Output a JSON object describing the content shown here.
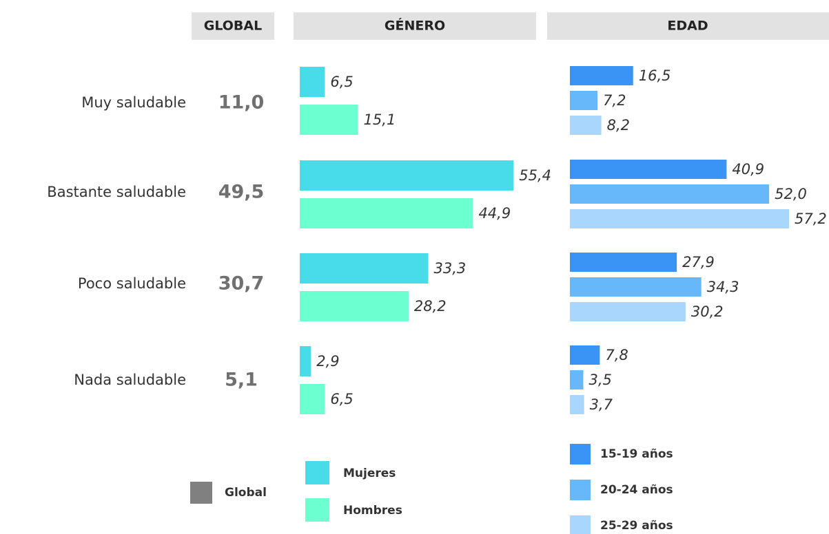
{
  "chart_data": [
    {
      "type": "table",
      "title": "GLOBAL",
      "categories": [
        "Muy saludable",
        "Bastante saludable",
        "Poco saludable",
        "Nada saludable"
      ],
      "values": [
        11.0,
        49.5,
        30.7,
        5.1
      ],
      "value_labels": [
        "11,0",
        "49,5",
        "30,7",
        "5,1"
      ],
      "legend": "Global",
      "color": "#808080"
    },
    {
      "type": "bar",
      "title": "GÉNERO",
      "series": [
        {
          "name": "Mujeres",
          "color": "#48dce8",
          "values": [
            6.5,
            55.4,
            33.3,
            2.9
          ],
          "value_labels": [
            "6,5",
            "55,4",
            "33,3",
            "2,9"
          ]
        },
        {
          "name": "Hombres",
          "color": "#6cffd0",
          "values": [
            15.1,
            44.9,
            28.2,
            6.5
          ],
          "value_labels": [
            "15,1",
            "44,9",
            "28,2",
            "6,5"
          ]
        }
      ]
    },
    {
      "type": "bar",
      "title": "EDAD",
      "series": [
        {
          "name": "15-19 años",
          "color": "#3a94f5",
          "values": [
            16.5,
            40.9,
            27.9,
            7.8
          ],
          "value_labels": [
            "16,5",
            "40,9",
            "27,9",
            "7,8"
          ]
        },
        {
          "name": "20-24 años",
          "color": "#66b8fb",
          "values": [
            7.2,
            52.0,
            34.3,
            3.5
          ],
          "value_labels": [
            "7,2",
            "52,0",
            "34,3",
            "3,5"
          ]
        },
        {
          "name": "25-29 años",
          "color": "#a8d6fc",
          "values": [
            8.2,
            57.2,
            30.2,
            3.7
          ],
          "value_labels": [
            "8,2",
            "57,2",
            "30,2",
            "3,7"
          ]
        }
      ]
    }
  ]
}
